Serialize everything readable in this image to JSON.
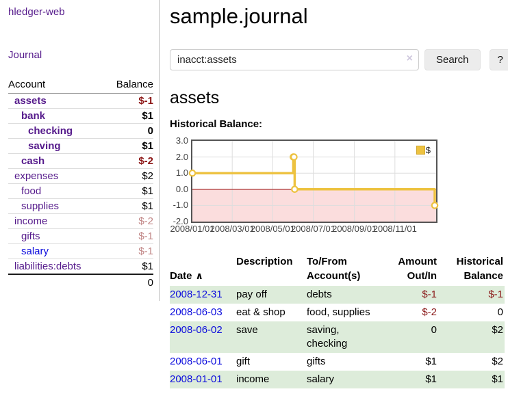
{
  "app": {
    "title": "hledger-web",
    "nav_journal": "Journal"
  },
  "icons": {
    "sort_ascending": "∧",
    "clear_search": "×"
  },
  "colors": {
    "link_purple": "#551a8b",
    "link_blue": "#0b0bdd",
    "negative_strong": "#8b1515",
    "negative_soft": "#c08585",
    "row_stripe_green": "#ddecda",
    "chart_line": "#edc240",
    "chart_border": "#545454",
    "chart_grid": "#dddddd",
    "chart_negative_fill": "#fbdddd",
    "chart_zero_line": "#9c1313"
  },
  "sidebar": {
    "headers": {
      "account": "Account",
      "balance": "Balance"
    },
    "accounts": [
      {
        "name": "assets",
        "balance": "$-1"
      },
      {
        "name": "bank",
        "balance": "$1"
      },
      {
        "name": "checking",
        "balance": "0"
      },
      {
        "name": "saving",
        "balance": "$1"
      },
      {
        "name": "cash",
        "balance": "$-2"
      },
      {
        "name": "expenses",
        "balance": "$2"
      },
      {
        "name": "food",
        "balance": "$1"
      },
      {
        "name": "supplies",
        "balance": "$1"
      },
      {
        "name": "income",
        "balance": "$-2"
      },
      {
        "name": "gifts",
        "balance": "$-1"
      },
      {
        "name": "salary",
        "balance": "$-1"
      },
      {
        "name": "liabilities:debts",
        "balance": "$1"
      }
    ],
    "total": "0"
  },
  "main": {
    "title": "sample.journal",
    "search": {
      "value": "inacct:assets",
      "button_label": "Search",
      "help_label": "?"
    },
    "heading": "assets",
    "chart_title": "Historical Balance:"
  },
  "chart_data": {
    "type": "line",
    "step": true,
    "title": "Historical Balance:",
    "series": [
      {
        "name": "$",
        "color": "#edc240",
        "points": [
          [
            "2008-01-01",
            1
          ],
          [
            "2008-06-01",
            2
          ],
          [
            "2008-06-02",
            2
          ],
          [
            "2008-06-03",
            0
          ],
          [
            "2008-12-31",
            -1
          ]
        ]
      }
    ],
    "x_domain": [
      "2008-01-01",
      "2008-12-31"
    ],
    "ylim": [
      -2,
      3
    ],
    "y_ticks": [
      "3.0",
      "2.0",
      "1.0",
      "0.0",
      "-1.0",
      "-2.0"
    ],
    "x_ticks": [
      "2008/01/01",
      "2008/03/01",
      "2008/05/01",
      "2008/07/01",
      "2008/09/01",
      "2008/11/01"
    ],
    "grid": true,
    "negative_region": true,
    "legend": {
      "label": "$",
      "position": "top-right"
    }
  },
  "register": {
    "headers": {
      "date": "Date",
      "description": "Description",
      "accounts": "To/From\nAccount(s)",
      "amount": "Amount\nOut/In",
      "balance": "Historical\nBalance"
    },
    "rows": [
      {
        "date": "2008-12-31",
        "description": "pay off",
        "accounts": "debts",
        "amount": "$-1",
        "balance": "$-1"
      },
      {
        "date": "2008-06-03",
        "description": "eat & shop",
        "accounts": "food, supplies",
        "amount": "$-2",
        "balance": "0"
      },
      {
        "date": "2008-06-02",
        "description": "save",
        "accounts": "saving,\nchecking",
        "amount": "0",
        "balance": "$2"
      },
      {
        "date": "2008-06-01",
        "description": "gift",
        "accounts": "gifts",
        "amount": "$1",
        "balance": "$2"
      },
      {
        "date": "2008-01-01",
        "description": "income",
        "accounts": "salary",
        "amount": "$1",
        "balance": "$1"
      }
    ]
  }
}
